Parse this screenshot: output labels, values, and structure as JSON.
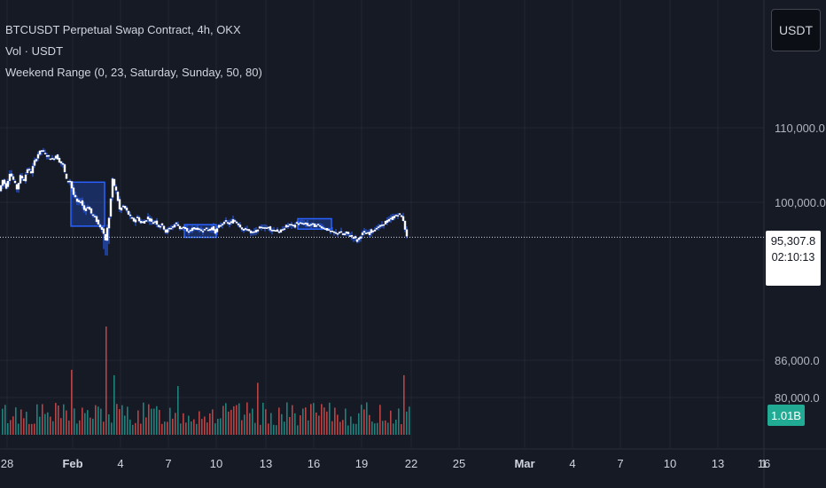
{
  "legend": {
    "symbol": "BTCUSDT Perpetual Swap Contract, 4h, OKX",
    "volume": "Vol · USDT",
    "indicator": "Weekend Range (0, 23, Saturday, Sunday, 50, 80)"
  },
  "currency_button": "USDT",
  "last_price": {
    "value": "95,307.8",
    "countdown": "02:10:13"
  },
  "volume_label": "1.01B",
  "colors": {
    "background": "#161a25",
    "candle": "#ffffff",
    "wick": "#2962ff",
    "box": "#2962ff",
    "vol_up": "#26a69a",
    "vol_down": "#ef5350"
  },
  "chart_data": {
    "type": "candlestick",
    "timeframe": "4h",
    "y_ticks": [
      "110,000.0",
      "100,000.0",
      "86,000.0",
      "80,000.0"
    ],
    "y_tick_values": [
      110000,
      100000,
      86000,
      80000
    ],
    "x_ticks": [
      {
        "label": "28",
        "bold": false
      },
      {
        "label": "Feb",
        "bold": true
      },
      {
        "label": "4",
        "bold": false
      },
      {
        "label": "7",
        "bold": false
      },
      {
        "label": "10",
        "bold": false
      },
      {
        "label": "13",
        "bold": false
      },
      {
        "label": "16",
        "bold": false
      },
      {
        "label": "19",
        "bold": false
      },
      {
        "label": "22",
        "bold": false
      },
      {
        "label": "25",
        "bold": false
      },
      {
        "label": "Mar",
        "bold": true
      },
      {
        "label": "4",
        "bold": false
      },
      {
        "label": "7",
        "bold": false
      },
      {
        "label": "10",
        "bold": false
      },
      {
        "label": "13",
        "bold": false
      },
      {
        "label": "16",
        "bold": false
      },
      {
        "label": "1",
        "bold": false
      }
    ],
    "price_path": [
      [
        0,
        101500
      ],
      [
        4,
        103000
      ],
      [
        8,
        102000
      ],
      [
        12,
        104000
      ],
      [
        16,
        103000
      ],
      [
        20,
        101800
      ],
      [
        24,
        103500
      ],
      [
        28,
        103000
      ],
      [
        32,
        104500
      ],
      [
        36,
        104000
      ],
      [
        40,
        105500
      ],
      [
        44,
        106500
      ],
      [
        48,
        107000
      ],
      [
        52,
        106500
      ],
      [
        56,
        106000
      ],
      [
        60,
        105800
      ],
      [
        64,
        106300
      ],
      [
        68,
        105500
      ],
      [
        72,
        105000
      ],
      [
        76,
        103000
      ],
      [
        80,
        102800
      ],
      [
        84,
        101000
      ],
      [
        88,
        100000
      ],
      [
        92,
        100200
      ],
      [
        96,
        99000
      ],
      [
        100,
        99500
      ],
      [
        104,
        98500
      ],
      [
        108,
        98000
      ],
      [
        112,
        97000
      ],
      [
        116,
        96500
      ],
      [
        120,
        95000
      ],
      [
        124,
        98000
      ],
      [
        128,
        103000
      ],
      [
        132,
        101500
      ],
      [
        136,
        99000
      ],
      [
        140,
        99500
      ],
      [
        144,
        98800
      ],
      [
        148,
        98000
      ],
      [
        152,
        97500
      ],
      [
        156,
        98000
      ],
      [
        160,
        97200
      ],
      [
        164,
        97500
      ],
      [
        168,
        98000
      ],
      [
        172,
        97300
      ],
      [
        176,
        97500
      ],
      [
        180,
        96800
      ],
      [
        184,
        97000
      ],
      [
        188,
        96000
      ],
      [
        192,
        96500
      ],
      [
        196,
        96800
      ],
      [
        200,
        97200
      ],
      [
        204,
        96500
      ],
      [
        208,
        96700
      ],
      [
        212,
        96000
      ],
      [
        216,
        96300
      ],
      [
        220,
        96600
      ],
      [
        224,
        96400
      ],
      [
        228,
        96200
      ],
      [
        232,
        96500
      ],
      [
        236,
        96300
      ],
      [
        240,
        96600
      ],
      [
        244,
        96000
      ],
      [
        248,
        96800
      ],
      [
        252,
        97200
      ],
      [
        256,
        97400
      ],
      [
        260,
        97100
      ],
      [
        264,
        97600
      ],
      [
        268,
        97300
      ],
      [
        272,
        96800
      ],
      [
        276,
        96200
      ],
      [
        280,
        96500
      ],
      [
        284,
        95800
      ],
      [
        288,
        96000
      ],
      [
        292,
        96300
      ],
      [
        296,
        96800
      ],
      [
        300,
        96500
      ],
      [
        304,
        96700
      ],
      [
        308,
        96200
      ],
      [
        312,
        96400
      ],
      [
        316,
        95900
      ],
      [
        320,
        96500
      ],
      [
        324,
        96800
      ],
      [
        328,
        97000
      ],
      [
        332,
        96800
      ],
      [
        336,
        97300
      ],
      [
        340,
        97100
      ],
      [
        344,
        97200
      ],
      [
        348,
        96900
      ],
      [
        352,
        97100
      ],
      [
        356,
        96800
      ],
      [
        360,
        97000
      ],
      [
        364,
        96700
      ],
      [
        368,
        96500
      ],
      [
        372,
        96200
      ],
      [
        376,
        96000
      ],
      [
        380,
        95800
      ],
      [
        384,
        96100
      ],
      [
        388,
        95600
      ],
      [
        392,
        95900
      ],
      [
        396,
        95500
      ],
      [
        400,
        95300
      ],
      [
        404,
        94800
      ],
      [
        408,
        95600
      ],
      [
        412,
        96000
      ],
      [
        416,
        95800
      ],
      [
        420,
        96200
      ],
      [
        424,
        96400
      ],
      [
        428,
        96700
      ],
      [
        432,
        96900
      ],
      [
        436,
        97400
      ],
      [
        440,
        97600
      ],
      [
        444,
        98000
      ],
      [
        448,
        98300
      ],
      [
        452,
        98400
      ],
      [
        456,
        97600
      ],
      [
        460,
        95300
      ]
    ],
    "weekend_boxes": [
      {
        "x0": 80,
        "x1": 118,
        "high": 102700,
        "low": 96800
      },
      {
        "x0": 208,
        "x1": 244,
        "high": 97000,
        "low": 95300
      },
      {
        "x0": 336,
        "x1": 374,
        "high": 97800,
        "low": 96400
      }
    ],
    "volume_bars": [
      {
        "x": 80,
        "v": 0.6,
        "up": false
      },
      {
        "x": 118,
        "v": 1.0,
        "up": false
      },
      {
        "x": 128,
        "v": 0.55,
        "up": true
      },
      {
        "x": 200,
        "v": 0.45,
        "up": true
      },
      {
        "x": 290,
        "v": 0.48,
        "up": false
      },
      {
        "x": 455,
        "v": 0.55,
        "up": false
      }
    ]
  }
}
